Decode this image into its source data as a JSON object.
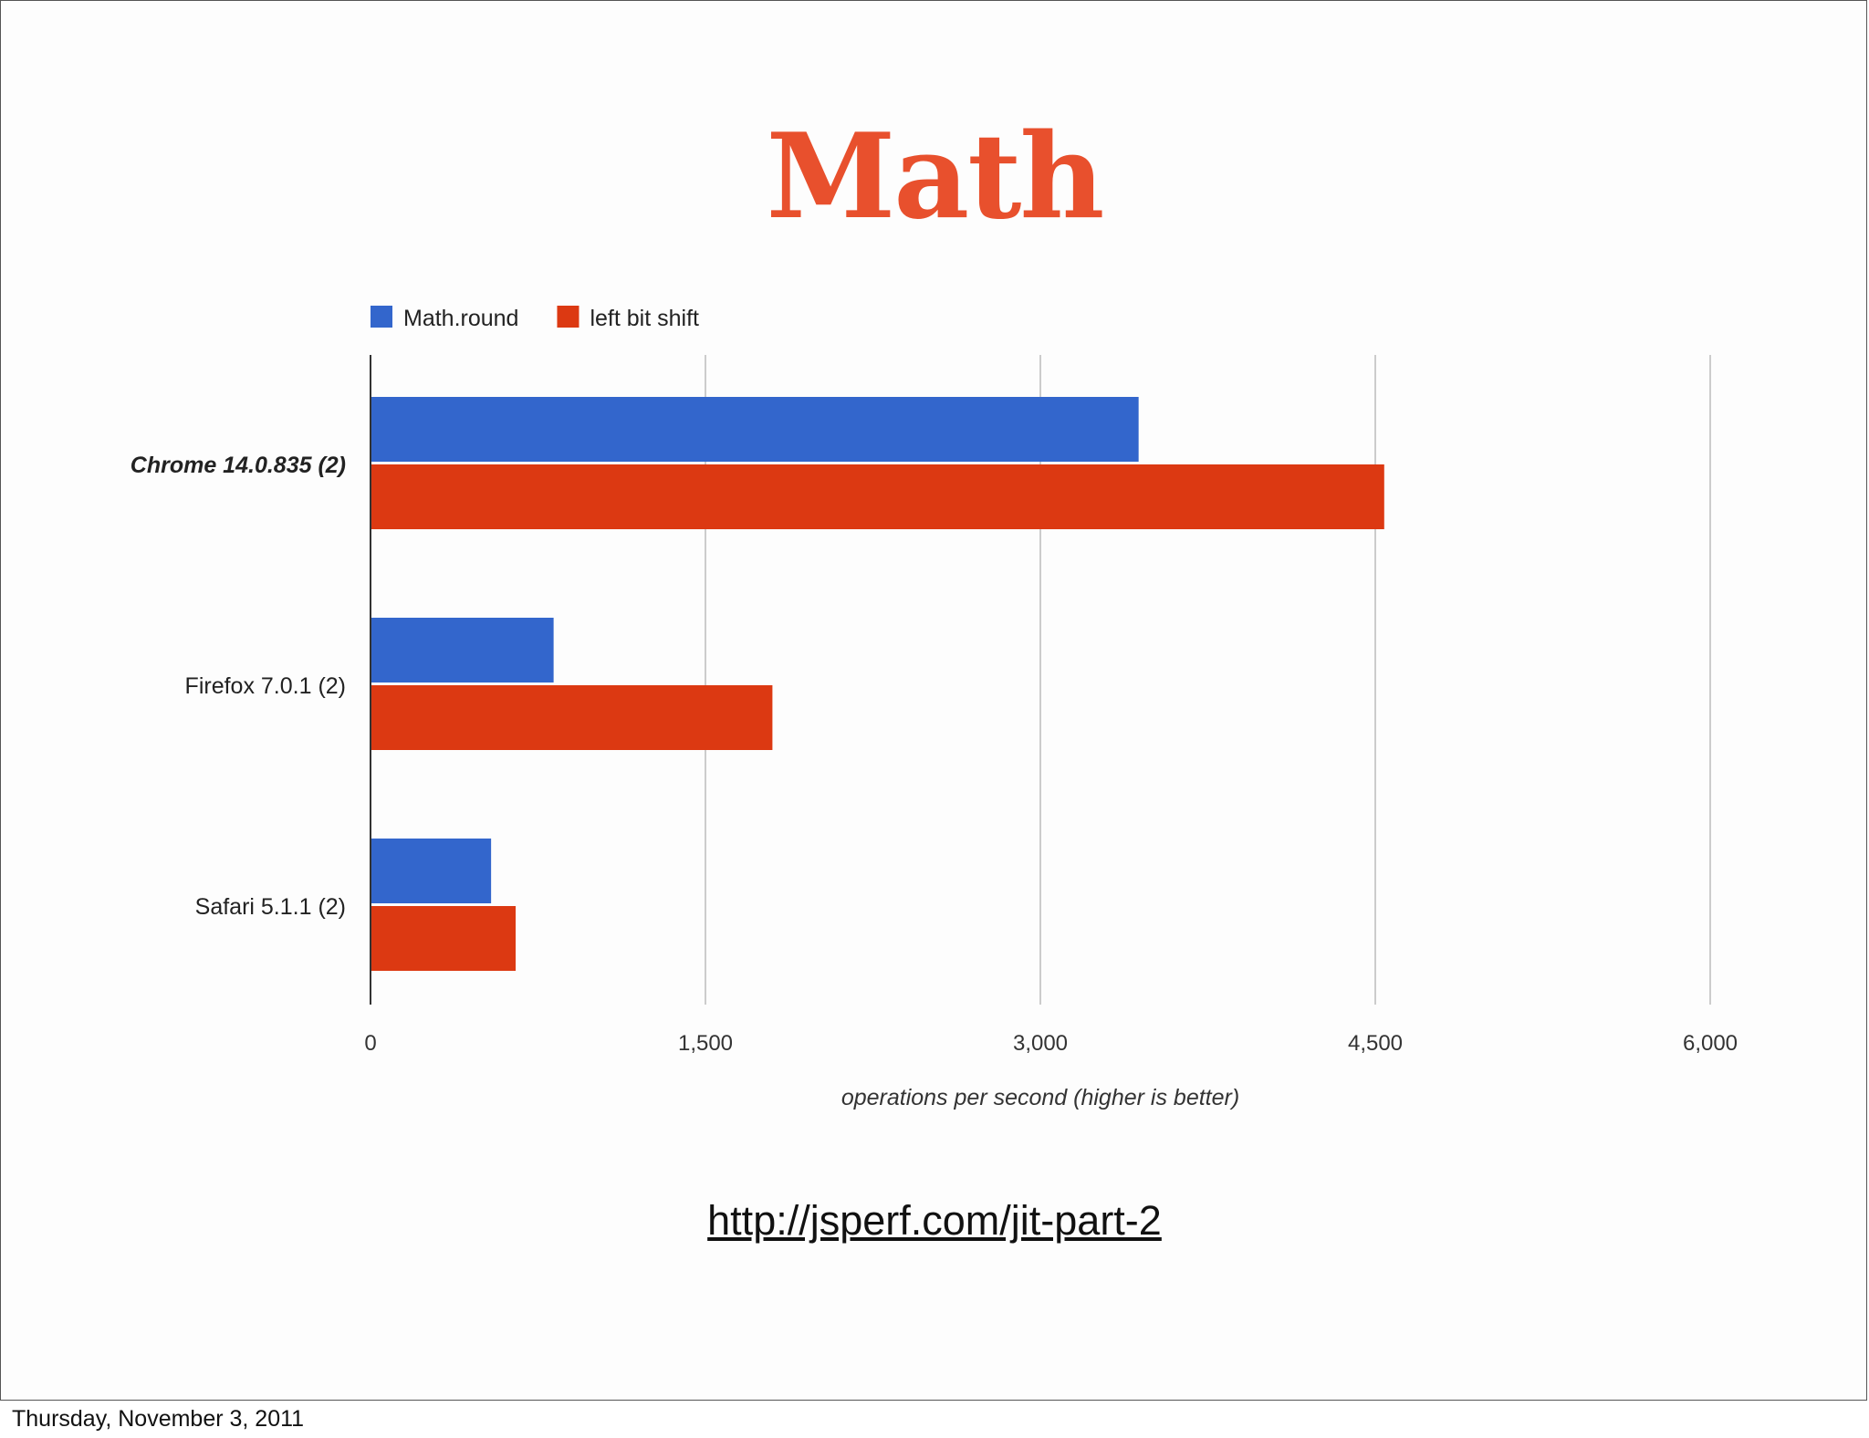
{
  "slide": {
    "title": "Math",
    "title_color": "#e8502d",
    "link_text": "http://jsperf.com/jit-part-2",
    "footer_date": "Thursday, November 3, 2011"
  },
  "chart_data": {
    "type": "bar",
    "orientation": "horizontal",
    "categories": [
      "Chrome 14.0.835 (2)",
      "Firefox 7.0.1 (2)",
      "Safari 5.1.1 (2)"
    ],
    "category_emphasis": [
      true,
      false,
      false
    ],
    "series": [
      {
        "name": "Math.round",
        "color": "#3366cc",
        "values": [
          3440,
          820,
          540
        ]
      },
      {
        "name": "left bit shift",
        "color": "#dc3912",
        "values": [
          4540,
          1800,
          650
        ]
      }
    ],
    "xlabel": "operations per second (higher is better)",
    "xlim": [
      0,
      6000
    ],
    "xticks": [
      0,
      1500,
      3000,
      4500,
      6000
    ],
    "xtick_labels": [
      "0",
      "1,500",
      "3,000",
      "4,500",
      "6,000"
    ],
    "grid": true,
    "legend_position": "top-left"
  }
}
